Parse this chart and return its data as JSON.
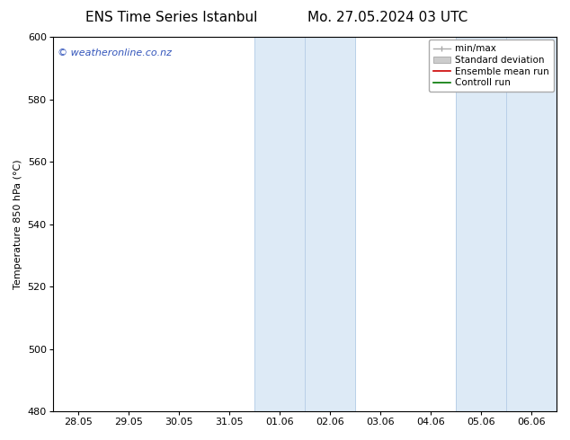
{
  "title_left": "ENS Time Series Istanbul",
  "title_right": "Mo. 27.05.2024 03 UTC",
  "ylabel": "Temperature 850 hPa (°C)",
  "ylim": [
    480,
    600
  ],
  "yticks": [
    480,
    500,
    520,
    540,
    560,
    580,
    600
  ],
  "xtick_labels": [
    "28.05",
    "29.05",
    "30.05",
    "31.05",
    "01.06",
    "02.06",
    "03.06",
    "04.06",
    "05.06",
    "06.06"
  ],
  "xtick_positions": [
    0,
    1,
    2,
    3,
    4,
    5,
    6,
    7,
    8,
    9
  ],
  "xlim": [
    -0.5,
    9.5
  ],
  "shaded_bands": [
    {
      "x_start": 3.5,
      "x_end": 5.5,
      "color": "#ddeaf6"
    },
    {
      "x_start": 7.5,
      "x_end": 9.5,
      "color": "#ddeaf6"
    }
  ],
  "band_edges": [
    {
      "x": 3.5
    },
    {
      "x": 4.5
    },
    {
      "x": 5.5
    },
    {
      "x": 7.5
    },
    {
      "x": 8.5
    },
    {
      "x": 9.5
    }
  ],
  "band_edge_color": "#b8d0e8",
  "legend_entries": [
    {
      "label": "min/max",
      "color": "#aaaaaa",
      "type": "errorbar"
    },
    {
      "label": "Standard deviation",
      "color": "#cccccc",
      "type": "band"
    },
    {
      "label": "Ensemble mean run",
      "color": "#cc0000",
      "type": "line"
    },
    {
      "label": "Controll run",
      "color": "#007700",
      "type": "line"
    }
  ],
  "watermark_text": "© weatheronline.co.nz",
  "watermark_color": "#3355bb",
  "watermark_fontsize": 8,
  "background_color": "#ffffff",
  "plot_bg_color": "#ffffff",
  "title_fontsize": 11,
  "tick_label_fontsize": 8,
  "ylabel_fontsize": 8,
  "legend_fontsize": 7.5
}
